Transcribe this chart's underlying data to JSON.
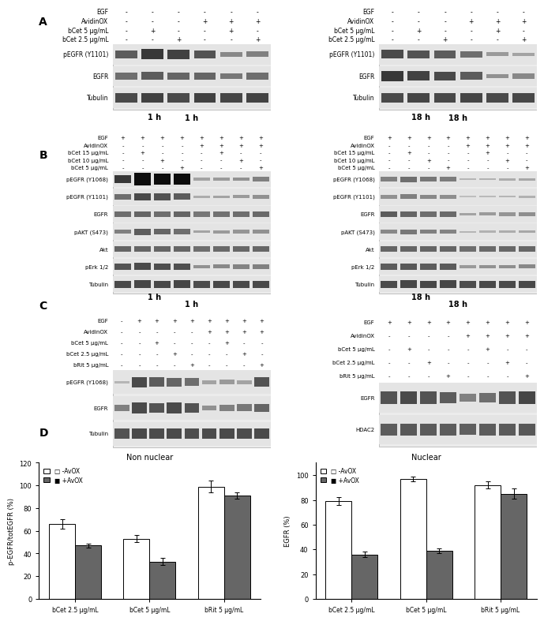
{
  "panel_A_left": {
    "title": "1 h",
    "conditions": [
      "EGF",
      "AvidinOX",
      "bCet 5 μg/mL",
      "bCet 2.5 μg/mL"
    ],
    "signs": [
      [
        "-",
        "-",
        "-",
        "-",
        "-",
        "-"
      ],
      [
        "-",
        "-",
        "-",
        "+",
        "+",
        "+"
      ],
      [
        "-",
        "+",
        "-",
        "-",
        "+",
        "-"
      ],
      [
        "-",
        "-",
        "+",
        "-",
        "-",
        "+"
      ]
    ],
    "blots": [
      "pEGFR (Y1101)",
      "EGFR",
      "Tubulin"
    ]
  },
  "panel_A_right": {
    "title": "18 h",
    "conditions": [
      "EGF",
      "AvidinOX",
      "bCet 5 μg/mL",
      "bCet 2.5 μg/mL"
    ],
    "signs": [
      [
        "-",
        "-",
        "-",
        "-",
        "-",
        "-"
      ],
      [
        "-",
        "-",
        "-",
        "+",
        "+",
        "+"
      ],
      [
        "-",
        "+",
        "-",
        "-",
        "+",
        "-"
      ],
      [
        "-",
        "-",
        "+",
        "-",
        "-",
        "+"
      ]
    ],
    "blots": [
      "pEGFR (Y1101)",
      "EGFR",
      "Tubulin"
    ]
  },
  "panel_B_left": {
    "title": "1 h",
    "conditions": [
      "EGF",
      "AvidinOX",
      "bCet 15 μg/mL",
      "bCet 10 μg/mL",
      "bCet 5 μg/mL"
    ],
    "signs": [
      [
        "+",
        "+",
        "+",
        "+",
        "+",
        "+",
        "+",
        "+"
      ],
      [
        "-",
        "-",
        "-",
        "-",
        "+",
        "+",
        "+",
        "+"
      ],
      [
        "-",
        "+",
        "-",
        "-",
        "-",
        "+",
        "-",
        "-"
      ],
      [
        "-",
        "-",
        "+",
        "-",
        "-",
        "-",
        "+",
        "-"
      ],
      [
        "-",
        "-",
        "-",
        "+",
        "-",
        "-",
        "-",
        "+"
      ]
    ],
    "blots": [
      "pEGFR (Y1068)",
      "pEGFR (Y1101)",
      "EGFR",
      "pAKT (S473)",
      "Akt",
      "pErk 1/2",
      "Tubulin"
    ]
  },
  "panel_B_right": {
    "title": "18 h",
    "conditions": [
      "EGF",
      "AvidinOX",
      "bCet 15 μg/mL",
      "bCet 10 μg/mL",
      "bCet 5 μg/mL"
    ],
    "signs": [
      [
        "+",
        "+",
        "+",
        "+",
        "+",
        "+",
        "+",
        "+"
      ],
      [
        "-",
        "-",
        "-",
        "-",
        "+",
        "+",
        "+",
        "+"
      ],
      [
        "-",
        "+",
        "-",
        "-",
        "-",
        "+",
        "-",
        "-"
      ],
      [
        "-",
        "-",
        "+",
        "-",
        "-",
        "-",
        "+",
        "-"
      ],
      [
        "-",
        "-",
        "-",
        "+",
        "-",
        "-",
        "-",
        "+"
      ]
    ],
    "blots": [
      "pEGFR (Y1068)",
      "pEGFR (Y1101)",
      "EGFR",
      "pAKT (S473)",
      "Akt",
      "pErk 1/2",
      "Tubulin"
    ]
  },
  "panel_C_left": {
    "conditions": [
      "EGF",
      "AvidinOX",
      "bCet 5 μg/mL",
      "bCet 2.5 μg/mL",
      "bRit 5 μg/mL"
    ],
    "signs": [
      [
        "-",
        "+",
        "+",
        "+",
        "+",
        "+",
        "+",
        "+",
        "+"
      ],
      [
        "-",
        "-",
        "-",
        "-",
        "-",
        "+",
        "+",
        "+",
        "+"
      ],
      [
        "-",
        "-",
        "+",
        "-",
        "-",
        "-",
        "+",
        "-",
        "-"
      ],
      [
        "-",
        "-",
        "-",
        "+",
        "-",
        "-",
        "-",
        "+",
        "-"
      ],
      [
        "-",
        "-",
        "-",
        "-",
        "+",
        "-",
        "-",
        "-",
        "+"
      ]
    ],
    "blots": [
      "pEGFR (Y1068)",
      "EGFR",
      "Tubulin"
    ]
  },
  "panel_C_right": {
    "conditions": [
      "EGF",
      "AvidinOX",
      "bCet 5 μg/mL",
      "bCet 2.5 μg/mL",
      "bRit 5 μg/mL"
    ],
    "signs": [
      [
        "+",
        "+",
        "+",
        "+",
        "+",
        "+",
        "+",
        "+"
      ],
      [
        "-",
        "-",
        "-",
        "-",
        "+",
        "+",
        "+",
        "+"
      ],
      [
        "-",
        "+",
        "-",
        "-",
        "-",
        "+",
        "-",
        "-"
      ],
      [
        "-",
        "-",
        "+",
        "-",
        "-",
        "-",
        "+",
        "-"
      ],
      [
        "-",
        "-",
        "-",
        "+",
        "-",
        "-",
        "-",
        "+"
      ]
    ],
    "blots": [
      "EGFR",
      "HDAC2"
    ]
  },
  "panel_D_left": {
    "title": "Non nuclear",
    "ylabel": "p-EGFR/totEGFR (%)",
    "ylim": [
      0,
      120
    ],
    "yticks": [
      0,
      20,
      40,
      60,
      80,
      100,
      120
    ],
    "categories": [
      "bCet 2.5 μg/mL",
      "bCet 5 μg/mL",
      "bRit 5 μg/mL"
    ],
    "white_bars": [
      66,
      53,
      99
    ],
    "gray_bars": [
      47,
      33,
      91
    ],
    "white_errors": [
      4,
      3,
      5
    ],
    "gray_errors": [
      2,
      3,
      3
    ],
    "legend": [
      "-AvOX",
      "+AvOX"
    ]
  },
  "panel_D_right": {
    "title": "Nuclear",
    "ylabel": "EGFR (%)",
    "ylim": [
      0,
      110
    ],
    "yticks": [
      0,
      20,
      40,
      60,
      80,
      100
    ],
    "categories": [
      "bCet 2.5 μg/mL",
      "bCet 5 μg/mL",
      "bRit 5 μg/mL"
    ],
    "white_bars": [
      79,
      97,
      92
    ],
    "gray_bars": [
      36,
      39,
      85
    ],
    "white_errors": [
      3,
      2,
      3
    ],
    "gray_errors": [
      2,
      2,
      4
    ],
    "legend": [
      "-AvOX",
      "+AvOX"
    ]
  },
  "bg_color": "#ffffff",
  "blot_bg": "#e8e8e8",
  "blot_dark": "#555555",
  "blot_medium": "#999999",
  "blot_light": "#cccccc"
}
